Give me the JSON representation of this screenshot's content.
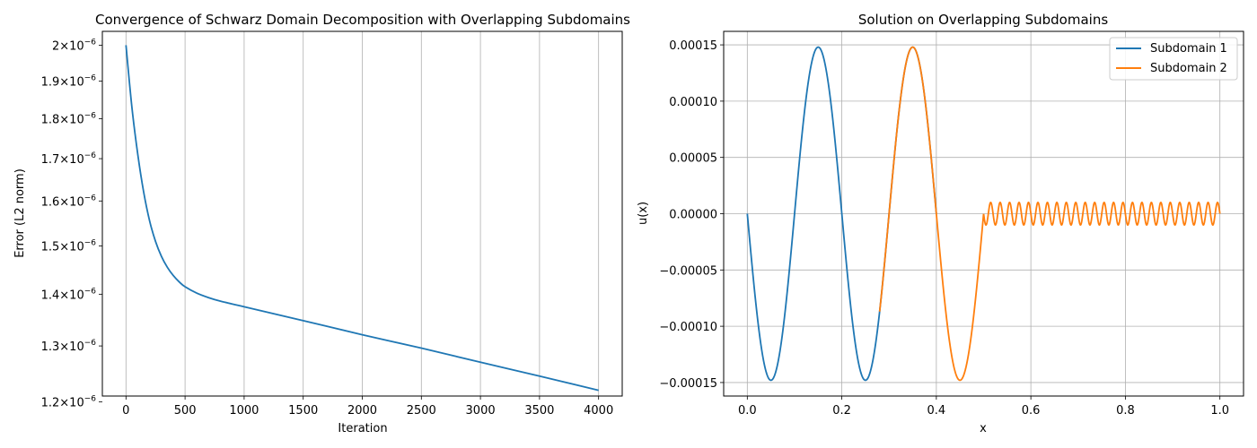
{
  "chart_data": [
    {
      "type": "line",
      "title": "Convergence of Schwarz Domain Decomposition with Overlapping Subdomains",
      "xlabel": "Iteration",
      "ylabel": "Error (L2 norm)",
      "yscale": "log",
      "xlim": [
        -200,
        4200
      ],
      "ylim": [
        1.21e-06,
        2.04e-06
      ],
      "grid": "x-only",
      "x_ticks": [
        {
          "value": 0,
          "label": "0"
        },
        {
          "value": 500,
          "label": "500"
        },
        {
          "value": 1000,
          "label": "1000"
        },
        {
          "value": 1500,
          "label": "1500"
        },
        {
          "value": 2000,
          "label": "2000"
        },
        {
          "value": 2500,
          "label": "2500"
        },
        {
          "value": 3000,
          "label": "3000"
        },
        {
          "value": 3500,
          "label": "3500"
        },
        {
          "value": 4000,
          "label": "4000"
        }
      ],
      "y_ticks": [
        {
          "value": 2e-06,
          "mantissa": "2",
          "exp": "−6"
        },
        {
          "value": 1.9e-06,
          "mantissa": "1.9",
          "exp": "−6"
        },
        {
          "value": 1.8e-06,
          "mantissa": "1.8",
          "exp": "−6"
        },
        {
          "value": 1.7e-06,
          "mantissa": "1.7",
          "exp": "−6"
        },
        {
          "value": 1.6e-06,
          "mantissa": "1.6",
          "exp": "−6"
        },
        {
          "value": 1.5e-06,
          "mantissa": "1.5",
          "exp": "−6"
        },
        {
          "value": 1.4e-06,
          "mantissa": "1.4",
          "exp": "−6"
        },
        {
          "value": 1.3e-06,
          "mantissa": "1.3",
          "exp": "−6"
        },
        {
          "value": 1.2e-06,
          "mantissa": "1.2",
          "exp": "−6"
        }
      ],
      "series": [
        {
          "color": "#1f77b4",
          "x": [
            0,
            50,
            100,
            150,
            200,
            250,
            300,
            350,
            400,
            450,
            500,
            600,
            700,
            800,
            1000,
            1500,
            2000,
            2500,
            3000,
            3500,
            4000
          ],
          "y": [
            2e-06,
            1.83e-06,
            1.71e-06,
            1.62e-06,
            1.555e-06,
            1.51e-06,
            1.478e-06,
            1.455e-06,
            1.438e-06,
            1.425e-06,
            1.415e-06,
            1.402e-06,
            1.393e-06,
            1.386e-06,
            1.375e-06,
            1.348e-06,
            1.321e-06,
            1.296e-06,
            1.27e-06,
            1.245e-06,
            1.22e-06
          ]
        }
      ]
    },
    {
      "type": "line",
      "title": "Solution on Overlapping Subdomains",
      "xlabel": "x",
      "ylabel": "u(x)",
      "xlim": [
        -0.05,
        1.05
      ],
      "ylim": [
        -0.000162,
        0.000162
      ],
      "grid": "both",
      "x_ticks": [
        {
          "value": 0.0,
          "label": "0.0"
        },
        {
          "value": 0.2,
          "label": "0.2"
        },
        {
          "value": 0.4,
          "label": "0.4"
        },
        {
          "value": 0.6,
          "label": "0.6"
        },
        {
          "value": 0.8,
          "label": "0.8"
        },
        {
          "value": 1.0,
          "label": "1.0"
        }
      ],
      "y_ticks": [
        {
          "value": 0.00015,
          "label": "0.00015"
        },
        {
          "value": 0.0001,
          "label": "0.00010"
        },
        {
          "value": 5e-05,
          "label": "0.00005"
        },
        {
          "value": 0.0,
          "label": "0.00000"
        },
        {
          "value": -5e-05,
          "label": "−0.00005"
        },
        {
          "value": -0.0001,
          "label": "−0.00010"
        },
        {
          "value": -0.00015,
          "label": "−0.00015"
        }
      ],
      "legend": "top-right",
      "series": [
        {
          "name": "Subdomain 1",
          "color": "#1f77b4",
          "x_range": [
            0.0,
            0.4
          ],
          "function": "-0.000148*sin(10*pi*x)"
        },
        {
          "name": "Subdomain 2",
          "color": "#ff7f0e",
          "x_range": [
            0.28,
            1.0
          ],
          "function": "x<=0.5 ? -0.000148*sin(10*pi*x) : -0.00001*sin(100*pi*x)"
        }
      ]
    }
  ]
}
